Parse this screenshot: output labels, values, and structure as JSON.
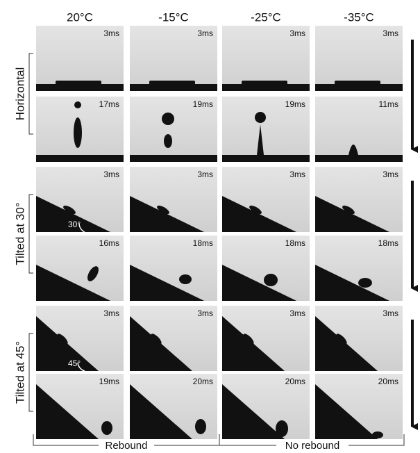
{
  "columns": [
    "20°C",
    "-15°C",
    "-25°C",
    "-35°C"
  ],
  "groups": [
    {
      "label": "Horizontal",
      "rows": [
        [
          "3ms",
          "3ms",
          "3ms",
          "3ms"
        ],
        [
          "17ms",
          "19ms",
          "19ms",
          "11ms"
        ]
      ]
    },
    {
      "label": "Tilted at 30°",
      "angle_label": "30°",
      "rows": [
        [
          "3ms",
          "3ms",
          "3ms",
          "3ms"
        ],
        [
          "16ms",
          "18ms",
          "18ms",
          "18ms"
        ]
      ]
    },
    {
      "label": "Tilted at 45°",
      "angle_label": "45°",
      "rows": [
        [
          "3ms",
          "3ms",
          "3ms",
          "3ms"
        ],
        [
          "19ms",
          "20ms",
          "20ms",
          "20ms"
        ]
      ]
    }
  ],
  "bottom_labels": [
    "Rebound",
    "No rebound"
  ]
}
